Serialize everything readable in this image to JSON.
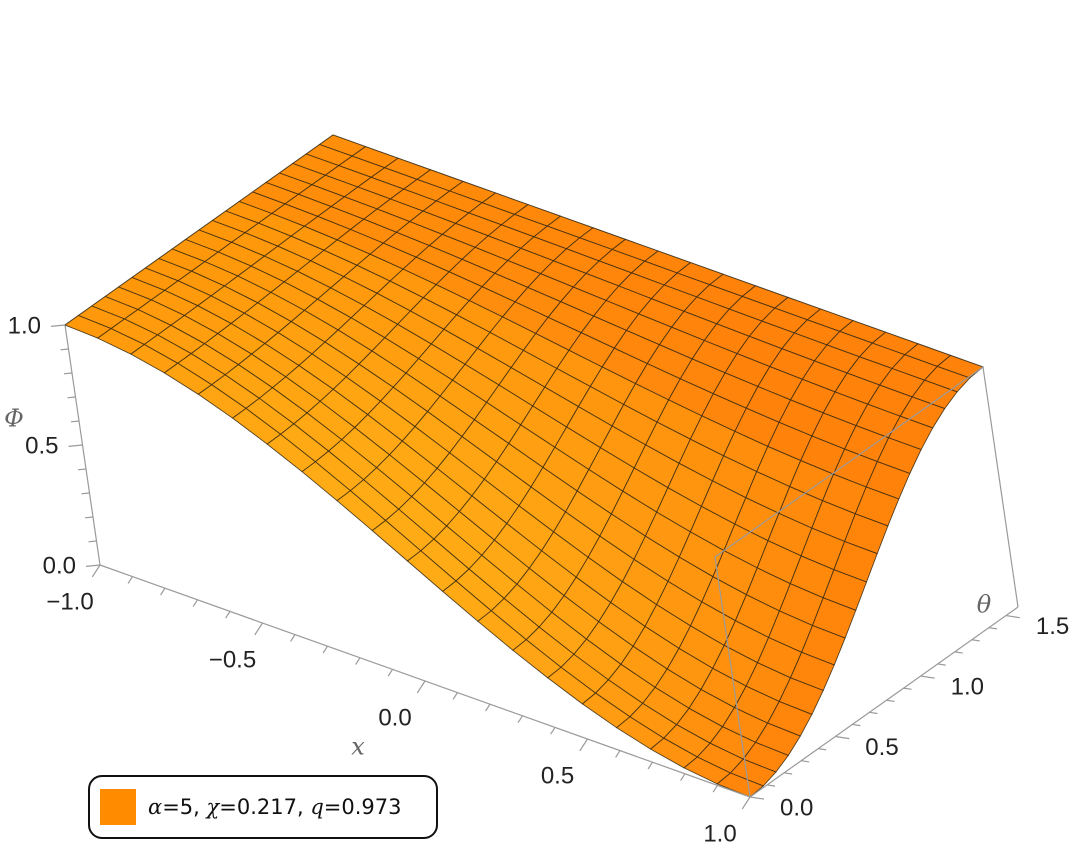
{
  "chart_data": {
    "type": "surface3d",
    "title": "",
    "x_axis": {
      "label": "x",
      "range": [
        -1.0,
        1.0
      ],
      "ticks": [
        -1.0,
        -0.5,
        0.0,
        0.5,
        1.0
      ],
      "tick_labels": [
        "−1.0",
        "−0.5",
        "0.0",
        "0.5",
        "1.0"
      ]
    },
    "y_axis": {
      "label": "θ",
      "range": [
        0.0,
        1.5708
      ],
      "ticks": [
        0.0,
        0.5,
        1.0,
        1.5
      ],
      "tick_labels": [
        "0.0",
        "0.5",
        "1.0",
        "1.5"
      ]
    },
    "z_axis": {
      "label": "Φ",
      "range": [
        0.0,
        1.0
      ],
      "ticks": [
        0.0,
        0.5,
        1.0
      ],
      "tick_labels": [
        "0.0",
        "0.5",
        "1.0"
      ]
    },
    "series": [
      {
        "name": "α=5, χ=0.217, q=0.973",
        "alpha": 5,
        "chi": 0.217,
        "q": 0.973,
        "color": "#ff8c00"
      }
    ],
    "sample_values": [
      {
        "x": -1.0,
        "theta": 0.0,
        "phi": 1.0
      },
      {
        "x": -1.0,
        "theta": 1.5708,
        "phi": 1.0
      },
      {
        "x": 0.0,
        "theta": 0.0,
        "phi": 0.5
      },
      {
        "x": 1.0,
        "theta": 0.0,
        "phi": 0.0
      },
      {
        "x": 1.0,
        "theta": 1.5708,
        "phi": 1.0
      }
    ],
    "legend_position": "bottom-left",
    "grid": false,
    "mesh": true
  },
  "legend": {
    "alpha_sym": "α",
    "alpha_val": "=5, ",
    "chi_sym": "χ",
    "chi_val": "=0.217, ",
    "q_sym": "q",
    "q_val": "=0.973",
    "swatch_color": "#ff8c00"
  }
}
